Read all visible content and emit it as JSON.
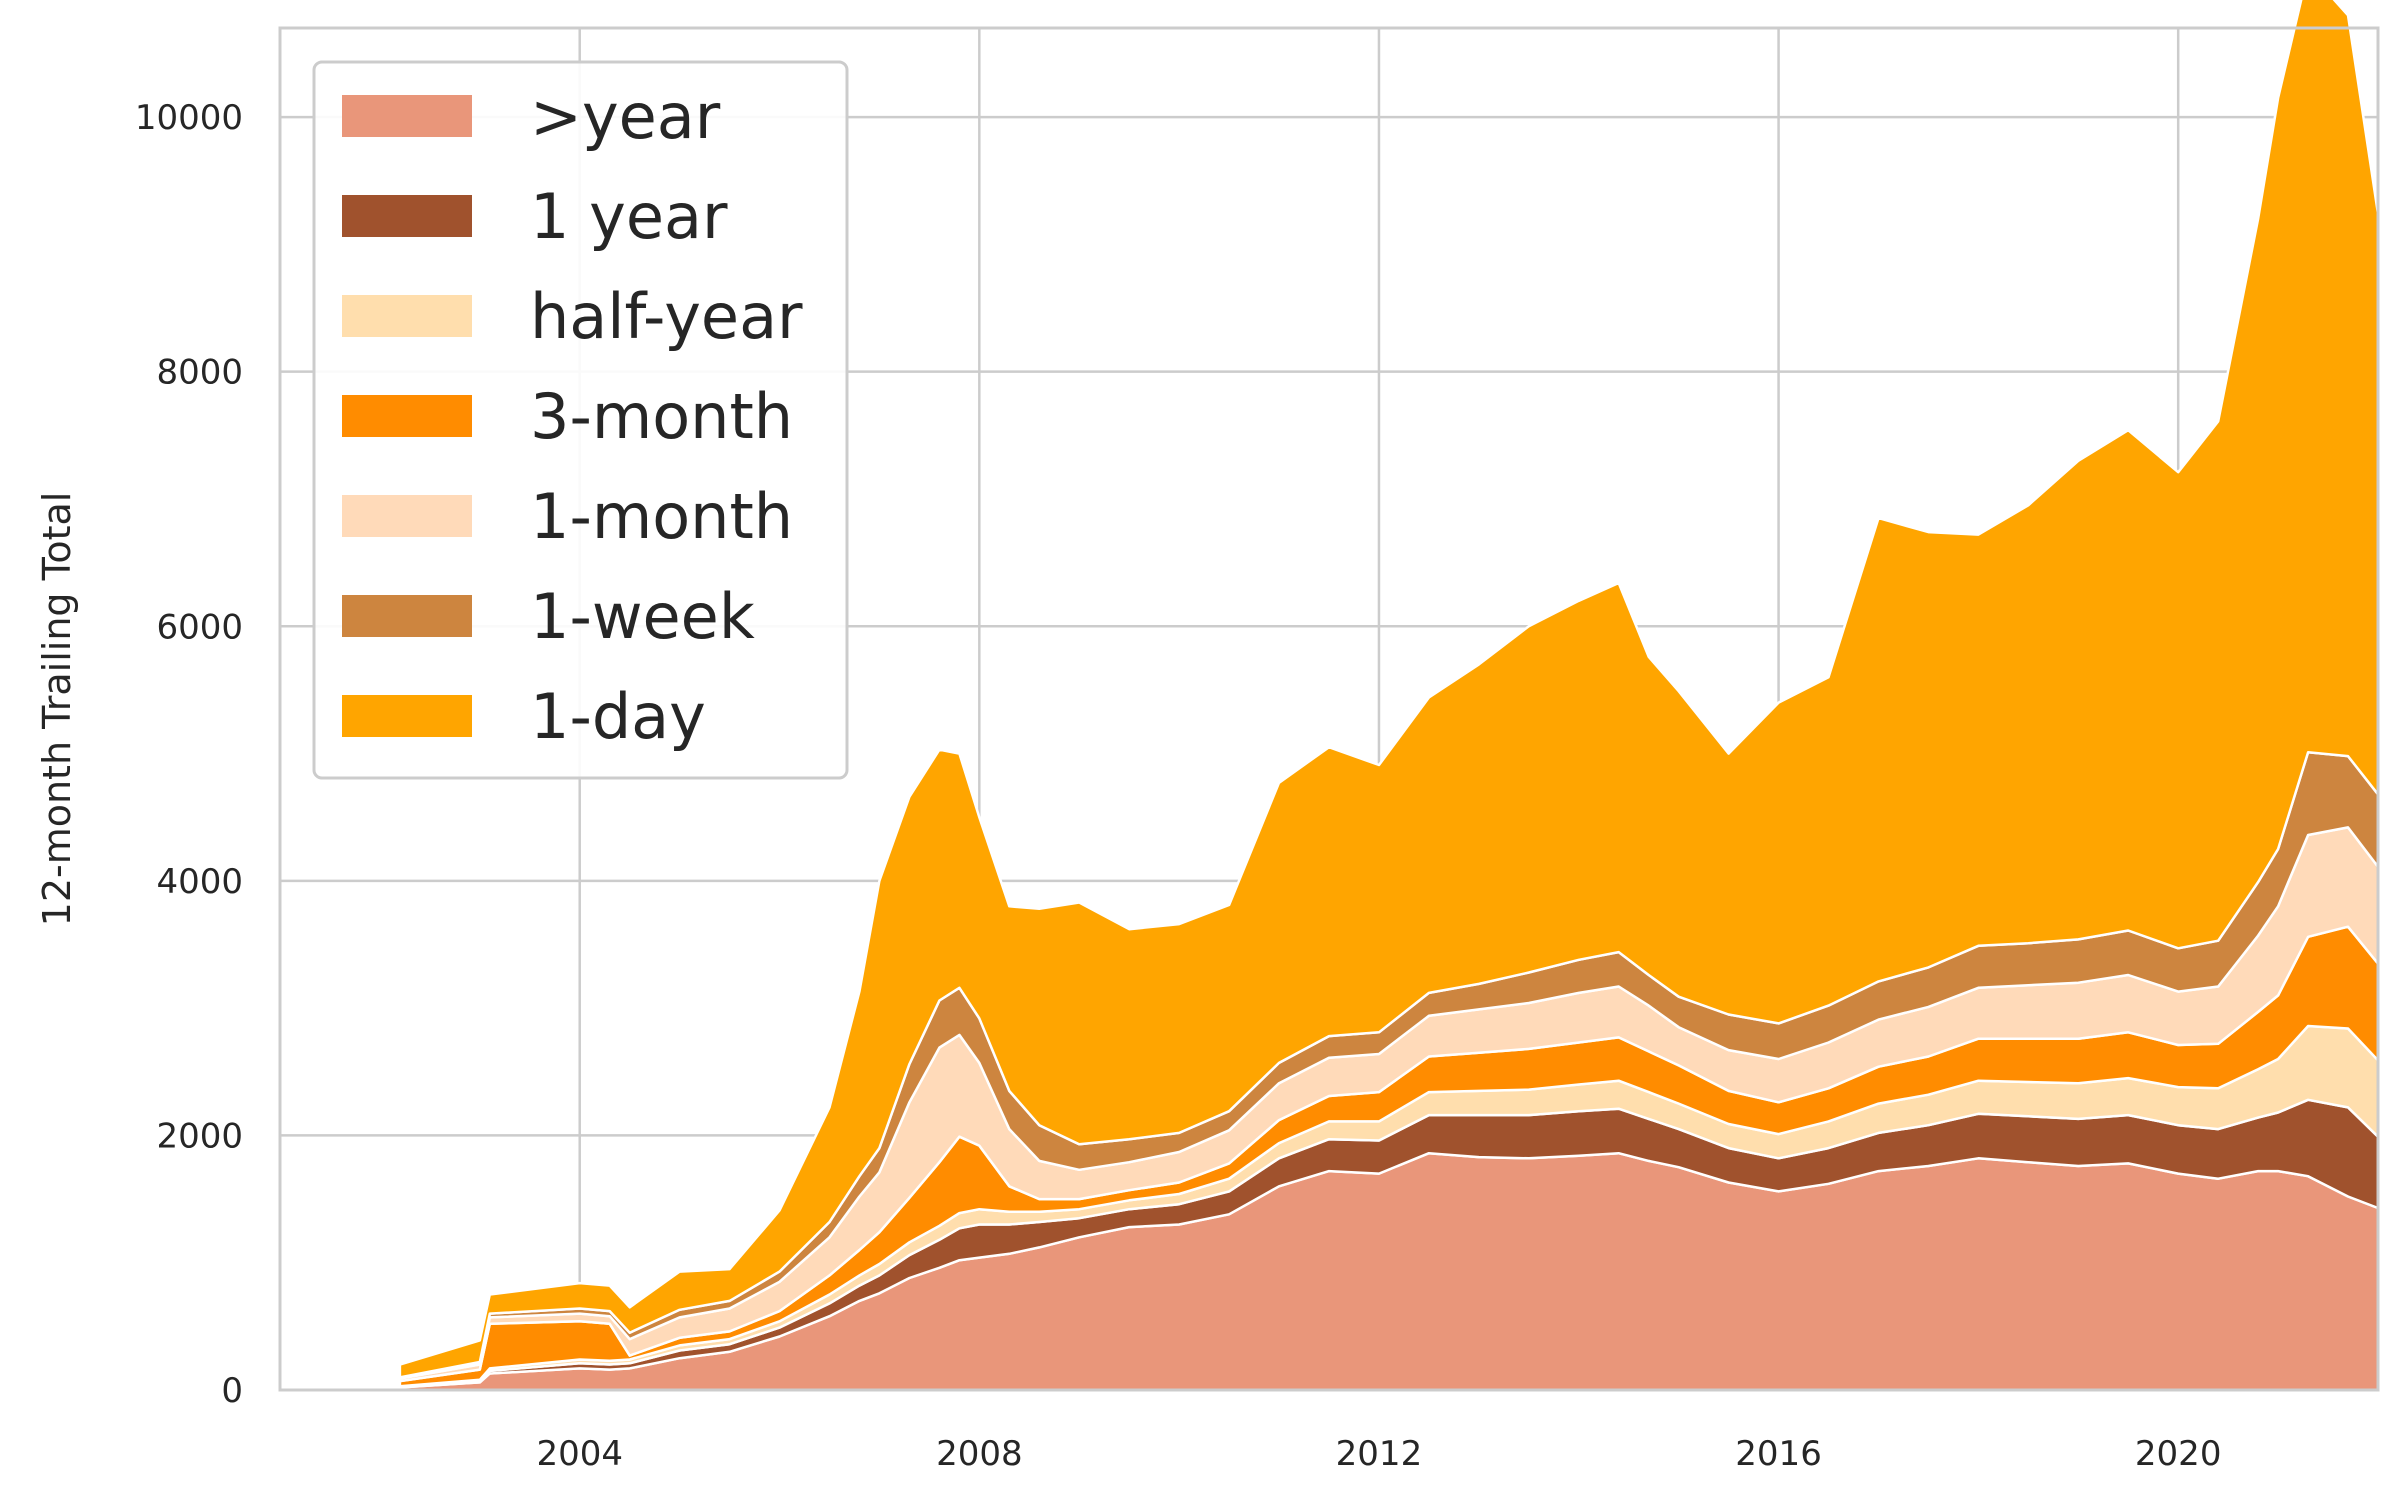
{
  "chart_data": {
    "type": "area",
    "stacked": true,
    "title": "",
    "xlabel": "",
    "ylabel": "12-month Trailing Total",
    "xlim": [
      2001.0,
      2022.0
    ],
    "ylim": [
      0,
      10700
    ],
    "xticks": [
      2004,
      2008,
      2012,
      2016,
      2020
    ],
    "yticks": [
      0,
      2000,
      4000,
      6000,
      8000,
      10000
    ],
    "grid": true,
    "legend_position": "top-left",
    "x": [
      2002.2,
      2003.0,
      2003.1,
      2004.0,
      2004.3,
      2004.5,
      2005.0,
      2005.5,
      2006.0,
      2006.5,
      2006.8,
      2007.0,
      2007.3,
      2007.6,
      2007.8,
      2008.0,
      2008.3,
      2008.6,
      2009.0,
      2009.5,
      2010.0,
      2010.5,
      2011.0,
      2011.5,
      2012.0,
      2012.5,
      2013.0,
      2013.5,
      2014.0,
      2014.4,
      2014.7,
      2015.0,
      2015.5,
      2016.0,
      2016.5,
      2017.0,
      2017.5,
      2018.0,
      2018.5,
      2019.0,
      2019.5,
      2020.0,
      2020.4,
      2020.8,
      2021.0,
      2021.3,
      2021.7,
      2022.0
    ],
    "series": [
      {
        "name": ">year",
        "color": "#E9967A",
        "values": [
          20,
          60,
          130,
          170,
          160,
          170,
          250,
          300,
          420,
          580,
          700,
          760,
          880,
          960,
          1020,
          1040,
          1070,
          1120,
          1200,
          1280,
          1300,
          1380,
          1600,
          1720,
          1700,
          1860,
          1830,
          1820,
          1840,
          1860,
          1800,
          1750,
          1630,
          1560,
          1620,
          1720,
          1760,
          1820,
          1790,
          1760,
          1780,
          1700,
          1660,
          1720,
          1720,
          1680,
          1520,
          1430
        ]
      },
      {
        "name": "1 year",
        "color": "#A0522D",
        "values": [
          5,
          10,
          20,
          40,
          40,
          40,
          60,
          60,
          70,
          100,
          120,
          140,
          180,
          220,
          250,
          260,
          230,
          200,
          150,
          140,
          160,
          180,
          220,
          250,
          260,
          300,
          330,
          340,
          350,
          350,
          330,
          300,
          270,
          260,
          280,
          300,
          320,
          350,
          360,
          370,
          380,
          380,
          390,
          420,
          460,
          600,
          700,
          560
        ]
      },
      {
        "name": "half-year",
        "color": "#FFDEAD",
        "values": [
          5,
          10,
          20,
          30,
          30,
          30,
          40,
          40,
          50,
          70,
          80,
          90,
          100,
          110,
          120,
          120,
          100,
          80,
          70,
          70,
          80,
          100,
          120,
          140,
          150,
          180,
          190,
          200,
          210,
          220,
          210,
          200,
          190,
          190,
          210,
          230,
          240,
          260,
          270,
          280,
          290,
          300,
          320,
          380,
          420,
          580,
          620,
          600
        ]
      },
      {
        "name": "3-month",
        "color": "#FF8C00",
        "values": [
          40,
          80,
          350,
          300,
          290,
          30,
          60,
          60,
          80,
          150,
          200,
          250,
          350,
          500,
          600,
          500,
          200,
          100,
          80,
          80,
          90,
          120,
          180,
          200,
          230,
          280,
          300,
          320,
          330,
          340,
          320,
          300,
          260,
          250,
          260,
          290,
          300,
          330,
          340,
          350,
          360,
          330,
          350,
          450,
          500,
          700,
          800,
          760
        ]
      },
      {
        "name": "1-month",
        "color": "#FFDAB9",
        "values": [
          20,
          40,
          50,
          60,
          60,
          130,
          160,
          180,
          230,
          300,
          420,
          470,
          750,
          900,
          800,
          650,
          450,
          300,
          230,
          220,
          240,
          260,
          290,
          300,
          300,
          320,
          340,
          360,
          390,
          400,
          360,
          300,
          320,
          340,
          360,
          370,
          390,
          400,
          420,
          440,
          450,
          420,
          450,
          600,
          700,
          800,
          780,
          760
        ]
      },
      {
        "name": "1-week",
        "color": "#CD853F",
        "values": [
          10,
          20,
          30,
          40,
          40,
          50,
          60,
          60,
          80,
          120,
          160,
          190,
          300,
          370,
          370,
          350,
          300,
          280,
          200,
          180,
          150,
          150,
          160,
          170,
          170,
          180,
          200,
          240,
          260,
          270,
          240,
          240,
          280,
          280,
          290,
          300,
          310,
          330,
          330,
          340,
          350,
          340,
          360,
          420,
          450,
          650,
          560,
          570
        ]
      },
      {
        "name": "1-day",
        "color": "#FFA500",
        "values": [
          100,
          170,
          150,
          200,
          200,
          200,
          300,
          250,
          480,
          900,
          1450,
          2100,
          2100,
          1970,
          1840,
          1580,
          1450,
          1700,
          1900,
          1650,
          1640,
          1620,
          2200,
          2270,
          2100,
          2320,
          2510,
          2720,
          2820,
          2900,
          2500,
          2400,
          2050,
          2520,
          2580,
          3640,
          3420,
          3230,
          3440,
          3760,
          3930,
          3740,
          4080,
          5210,
          5900,
          6140,
          5820,
          4560
        ]
      }
    ]
  }
}
